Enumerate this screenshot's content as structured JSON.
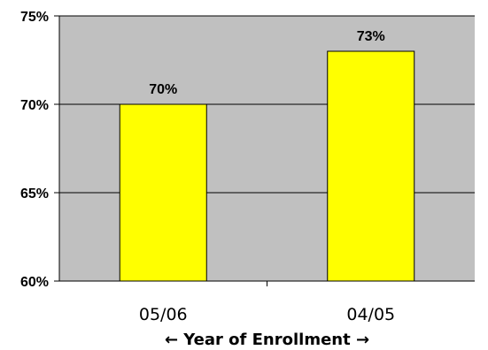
{
  "chart_data": {
    "type": "bar",
    "categories": [
      "05/06",
      "04/05"
    ],
    "values": [
      70,
      73
    ],
    "value_labels": [
      "70%",
      "73%"
    ],
    "ylim": [
      60,
      75
    ],
    "yticks": [
      60,
      65,
      70,
      75
    ],
    "ytick_labels": [
      "60%",
      "65%",
      "70%",
      "75%"
    ],
    "xlabel": "←  Year of Enrollment →",
    "ylabel": "",
    "grid": true,
    "legend": "none",
    "colors": {
      "plot_background": "#c0c0c0",
      "bar_fill": "#ffff00",
      "bar_stroke": "#000000",
      "gridline": "#000000"
    }
  }
}
